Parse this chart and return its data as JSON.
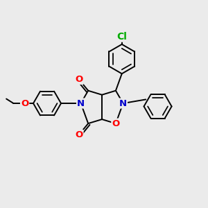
{
  "background_color": "#ebebeb",
  "bond_color": "#000000",
  "bond_width": 1.4,
  "atom_colors": {
    "C": "#000000",
    "N": "#0000cc",
    "O": "#ff0000",
    "Cl": "#00aa00"
  },
  "font_size": 9.5,
  "figsize": [
    3.0,
    3.0
  ],
  "dpi": 100
}
